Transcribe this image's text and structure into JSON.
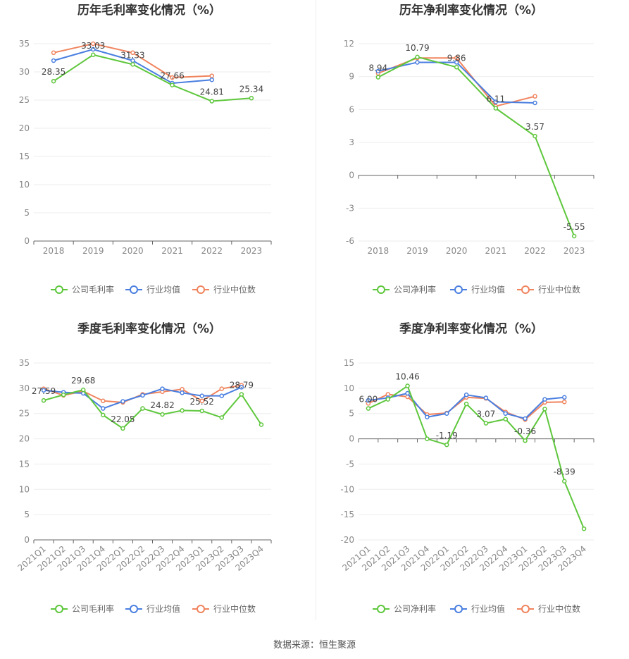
{
  "source_text": "数据来源：恒生聚源",
  "colors": {
    "company": "#5ec73c",
    "industry_avg": "#4a7fe0",
    "industry_median": "#f0845e"
  },
  "chart_data": [
    {
      "type": "line",
      "title": "历年毛利率变化情况（%）",
      "categories": [
        "2018",
        "2019",
        "2020",
        "2021",
        "2022",
        "2023"
      ],
      "ylim": [
        0,
        35
      ],
      "yticks": [
        0,
        5,
        10,
        15,
        20,
        25,
        30,
        35
      ],
      "grid": true,
      "legend_position": "bottom",
      "series": [
        {
          "name": "公司毛利率",
          "values": [
            28.35,
            33.03,
            31.33,
            27.66,
            24.81,
            25.34
          ]
        },
        {
          "name": "行业均值",
          "values": [
            32.0,
            34.0,
            32.0,
            28.0,
            28.6,
            null
          ]
        },
        {
          "name": "行业中位数",
          "values": [
            33.4,
            35.0,
            33.4,
            29.0,
            29.3,
            null
          ]
        }
      ],
      "data_labels": [
        "28.35",
        "33.03",
        "31.33",
        "27.66",
        "24.81",
        "25.34"
      ]
    },
    {
      "type": "line",
      "title": "历年净利率变化情况（%）",
      "categories": [
        "2018",
        "2019",
        "2020",
        "2021",
        "2022",
        "2023"
      ],
      "ylim": [
        -6,
        12
      ],
      "yticks": [
        -6,
        -3,
        0,
        3,
        6,
        9,
        12
      ],
      "grid": true,
      "legend_position": "bottom",
      "series": [
        {
          "name": "公司净利率",
          "values": [
            8.94,
            10.79,
            9.86,
            6.11,
            3.57,
            -5.55
          ]
        },
        {
          "name": "行业均值",
          "values": [
            9.5,
            10.3,
            10.3,
            6.7,
            6.6,
            null
          ]
        },
        {
          "name": "行业中位数",
          "values": [
            9.3,
            10.7,
            10.7,
            6.3,
            7.2,
            null
          ]
        }
      ],
      "data_labels": [
        "8.94",
        "10.79",
        "9.86",
        "6.11",
        "3.57",
        "-5.55"
      ]
    },
    {
      "type": "line",
      "title": "季度毛利率变化情况（%）",
      "categories": [
        "2021Q1",
        "2021Q2",
        "2021Q3",
        "2021Q4",
        "2022Q1",
        "2022Q2",
        "2022Q3",
        "2022Q4",
        "2023Q1",
        "2023Q2",
        "2023Q3",
        "2023Q4"
      ],
      "ylim": [
        0,
        35
      ],
      "yticks": [
        0,
        5,
        10,
        15,
        20,
        25,
        30,
        35
      ],
      "grid": true,
      "legend_position": "bottom",
      "series": [
        {
          "name": "公司毛利率",
          "values": [
            27.59,
            28.7,
            29.68,
            24.7,
            22.05,
            26.0,
            24.82,
            25.6,
            25.52,
            24.2,
            28.79,
            22.8
          ]
        },
        {
          "name": "行业均值",
          "values": [
            29.6,
            29.2,
            29.0,
            26.0,
            27.4,
            28.6,
            29.9,
            29.1,
            28.5,
            28.5,
            30.2,
            null
          ]
        },
        {
          "name": "行业中位数",
          "values": [
            29.9,
            28.6,
            29.4,
            27.5,
            27.2,
            28.8,
            29.3,
            29.8,
            27.5,
            29.9,
            30.6,
            null
          ]
        }
      ],
      "data_labels": [
        "27.59",
        "",
        "29.68",
        "",
        "22.05",
        "",
        "24.82",
        "",
        "25.52",
        "",
        "28.79",
        ""
      ]
    },
    {
      "type": "line",
      "title": "季度净利率变化情况（%）",
      "categories": [
        "2021Q1",
        "2021Q2",
        "2021Q3",
        "2021Q4",
        "2022Q1",
        "2022Q2",
        "2022Q3",
        "2022Q4",
        "2023Q1",
        "2023Q2",
        "2023Q3",
        "2023Q4"
      ],
      "ylim": [
        -20,
        15
      ],
      "yticks": [
        -20,
        -15,
        -10,
        -5,
        0,
        5,
        10,
        15
      ],
      "grid": true,
      "legend_position": "bottom",
      "series": [
        {
          "name": "公司净利率",
          "values": [
            6.0,
            7.8,
            10.46,
            0.0,
            -1.19,
            6.9,
            3.07,
            3.9,
            -0.36,
            5.9,
            -8.39,
            -17.8
          ]
        },
        {
          "name": "行业均值",
          "values": [
            7.6,
            8.1,
            9.0,
            4.3,
            5.0,
            8.7,
            8.1,
            5.0,
            4.0,
            7.8,
            8.2,
            null
          ]
        },
        {
          "name": "行业中位数",
          "values": [
            7.0,
            8.8,
            8.3,
            4.8,
            5.1,
            8.2,
            8.0,
            5.3,
            3.8,
            7.2,
            7.3,
            null
          ]
        }
      ],
      "data_labels": [
        "6.00",
        "",
        "10.46",
        "",
        "-1.19",
        "",
        "3.07",
        "",
        "-0.36",
        "",
        "-8.39",
        ""
      ]
    }
  ]
}
